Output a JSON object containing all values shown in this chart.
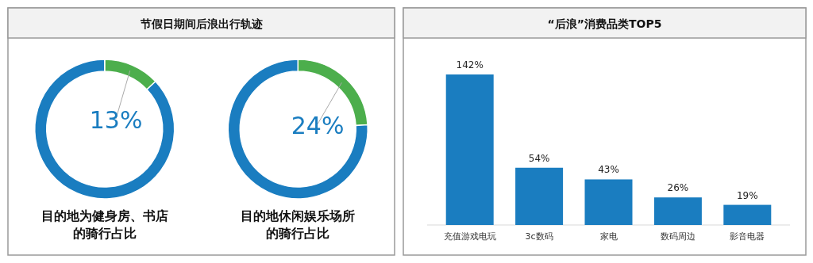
{
  "chart_data": [
    {
      "type": "donut",
      "title": "节假日期间后浪出行轨迹",
      "categories": [
        null,
        null
      ],
      "values": [
        13,
        87
      ],
      "colors": [
        "#4cae4c",
        "#1a7dc0"
      ],
      "value_labels": [
        "13%",
        null
      ],
      "annotations": [
        "目的地为健身房、书店",
        "的骑行占比"
      ]
    },
    {
      "type": "donut",
      "categories": [
        null,
        null
      ],
      "values": [
        24,
        76
      ],
      "colors": [
        "#4cae4c",
        "#1a7dc0"
      ],
      "value_labels": [
        "24%",
        null
      ],
      "annotations": [
        "目的地休闲娱乐场所",
        "的骑行占比"
      ]
    },
    {
      "type": "bar",
      "title": "“后浪”消费品类TOP5",
      "categories": [
        "充值游戏电玩",
        "3c数码",
        "家电",
        "数码周边",
        "影音电器"
      ],
      "color": "#1a7dc0",
      "values": [
        142,
        54,
        43,
        26,
        19
      ],
      "value_labels": [
        "142%",
        "54%",
        "43%",
        "26%",
        "19%"
      ]
    }
  ]
}
